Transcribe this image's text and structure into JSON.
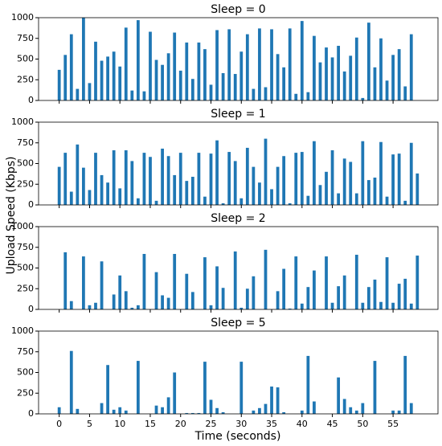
{
  "ylabel": "Upload Speed (Kbps)",
  "chart_data": [
    {
      "type": "bar",
      "title": "Sleep = 0",
      "color": "#1f77b4",
      "x": [
        0,
        1,
        2,
        3,
        4,
        5,
        6,
        7,
        8,
        9,
        10,
        11,
        12,
        13,
        14,
        15,
        16,
        17,
        18,
        19,
        20,
        21,
        22,
        23,
        24,
        25,
        26,
        27,
        28,
        29,
        30,
        31,
        32,
        33,
        34,
        35,
        36,
        37,
        38,
        39,
        40,
        41,
        42,
        43,
        44,
        45,
        46,
        47,
        48,
        49,
        50,
        51,
        52,
        53,
        54,
        55,
        56,
        57,
        58,
        59
      ],
      "values": [
        370,
        550,
        800,
        140,
        1000,
        210,
        710,
        480,
        530,
        590,
        410,
        880,
        120,
        970,
        110,
        830,
        490,
        430,
        570,
        820,
        360,
        700,
        260,
        700,
        620,
        190,
        850,
        330,
        860,
        320,
        590,
        800,
        140,
        870,
        160,
        860,
        560,
        400,
        870,
        80,
        960,
        100,
        780,
        460,
        640,
        520,
        660,
        350,
        540,
        760,
        30,
        940,
        400,
        750,
        240,
        550,
        620,
        170,
        800,
        null
      ],
      "xlim": [
        -3.4,
        62.4
      ],
      "ylim": [
        0,
        1000
      ],
      "yticks": [
        0,
        250,
        500,
        750,
        1000
      ]
    },
    {
      "type": "bar",
      "title": "Sleep = 1",
      "color": "#1f77b4",
      "x": [
        0,
        1,
        2,
        3,
        4,
        5,
        6,
        7,
        8,
        9,
        10,
        11,
        12,
        13,
        14,
        15,
        16,
        17,
        18,
        19,
        20,
        21,
        22,
        23,
        24,
        25,
        26,
        27,
        28,
        29,
        30,
        31,
        32,
        33,
        34,
        35,
        36,
        37,
        38,
        39,
        40,
        41,
        42,
        43,
        44,
        45,
        46,
        47,
        48,
        49,
        50,
        51,
        52,
        53,
        54,
        55,
        56,
        57,
        58,
        59
      ],
      "values": [
        460,
        630,
        160,
        730,
        450,
        180,
        630,
        360,
        270,
        660,
        200,
        660,
        530,
        80,
        630,
        580,
        50,
        680,
        590,
        360,
        630,
        290,
        340,
        630,
        100,
        620,
        780,
        20,
        640,
        530,
        80,
        690,
        460,
        270,
        800,
        190,
        460,
        590,
        20,
        630,
        640,
        110,
        770,
        240,
        400,
        660,
        140,
        560,
        520,
        140,
        770,
        300,
        330,
        760,
        100,
        610,
        620,
        50,
        750,
        380
      ],
      "xlim": [
        -3.4,
        62.4
      ],
      "ylim": [
        0,
        1000
      ],
      "yticks": [
        0,
        250,
        500,
        750,
        1000
      ]
    },
    {
      "type": "bar",
      "title": "Sleep = 2",
      "color": "#1f77b4",
      "x": [
        0,
        1,
        2,
        3,
        4,
        5,
        6,
        7,
        8,
        9,
        10,
        11,
        12,
        13,
        14,
        15,
        16,
        17,
        18,
        19,
        20,
        21,
        22,
        23,
        24,
        25,
        26,
        27,
        28,
        29,
        30,
        31,
        32,
        33,
        34,
        35,
        36,
        37,
        38,
        39,
        40,
        41,
        42,
        43,
        44,
        45,
        46,
        47,
        48,
        49,
        50,
        51,
        52,
        53,
        54,
        55,
        56,
        57,
        58,
        59
      ],
      "values": [
        0,
        690,
        100,
        0,
        640,
        50,
        80,
        580,
        0,
        180,
        410,
        220,
        20,
        50,
        670,
        0,
        450,
        170,
        140,
        670,
        0,
        430,
        210,
        0,
        630,
        50,
        520,
        260,
        0,
        700,
        20,
        250,
        400,
        0,
        720,
        0,
        220,
        490,
        10,
        640,
        70,
        270,
        470,
        0,
        640,
        80,
        280,
        410,
        0,
        660,
        80,
        270,
        360,
        90,
        630,
        80,
        310,
        370,
        70,
        650
      ],
      "xlim": [
        -3.4,
        62.4
      ],
      "ylim": [
        0,
        1000
      ],
      "yticks": [
        0,
        250,
        500,
        750,
        1000
      ]
    },
    {
      "type": "bar",
      "title": "Sleep = 5",
      "color": "#1f77b4",
      "xlabel": "Time (seconds)",
      "x": [
        0,
        1,
        2,
        3,
        4,
        5,
        6,
        7,
        8,
        9,
        10,
        11,
        12,
        13,
        14,
        15,
        16,
        17,
        18,
        19,
        20,
        21,
        22,
        23,
        24,
        25,
        26,
        27,
        28,
        29,
        30,
        31,
        32,
        33,
        34,
        35,
        36,
        37,
        38,
        39,
        40,
        41,
        42,
        43,
        44,
        45,
        46,
        47,
        48,
        49,
        50,
        51,
        52,
        53,
        54,
        55,
        56,
        57,
        58,
        59
      ],
      "values": [
        80,
        0,
        760,
        60,
        0,
        0,
        0,
        130,
        590,
        50,
        80,
        40,
        0,
        640,
        0,
        0,
        100,
        80,
        200,
        500,
        0,
        10,
        10,
        10,
        630,
        170,
        70,
        20,
        0,
        0,
        630,
        0,
        40,
        70,
        120,
        330,
        320,
        20,
        0,
        0,
        40,
        700,
        150,
        0,
        0,
        0,
        440,
        180,
        80,
        40,
        130,
        0,
        640,
        0,
        0,
        40,
        40,
        700,
        130,
        0
      ],
      "xlim": [
        -3.4,
        62.4
      ],
      "ylim": [
        0,
        1000
      ],
      "yticks": [
        0,
        250,
        500,
        750,
        1000
      ],
      "xticks": [
        0,
        5,
        10,
        15,
        20,
        25,
        30,
        35,
        40,
        45,
        50,
        55
      ]
    }
  ]
}
